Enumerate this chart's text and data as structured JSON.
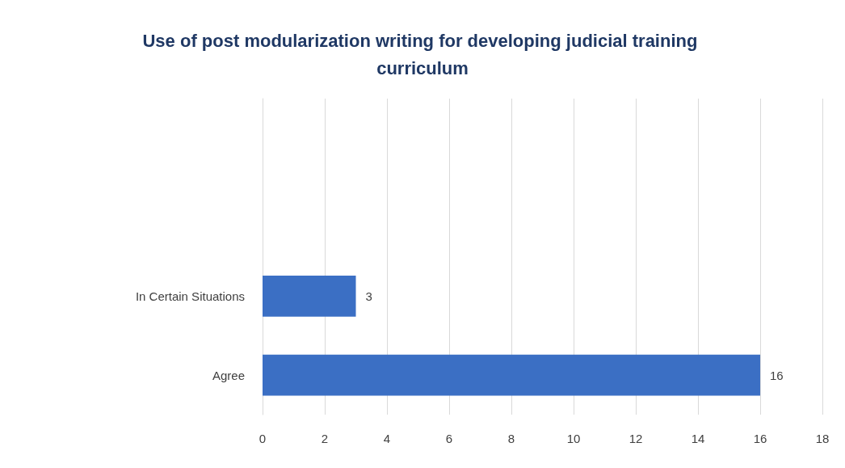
{
  "chart_data": {
    "type": "bar",
    "orientation": "horizontal",
    "title": "Use of post modularization writing for developing judicial training curriculum",
    "categories": [
      null,
      null,
      "In Certain Situations",
      "Agree"
    ],
    "values": [
      null,
      null,
      3,
      16
    ],
    "color": "#3b6fc4",
    "xlim": [
      0,
      18
    ],
    "xticks": [
      0,
      2,
      4,
      6,
      8,
      10,
      12,
      14,
      16,
      18
    ],
    "grid": "x",
    "data_labels": true
  }
}
